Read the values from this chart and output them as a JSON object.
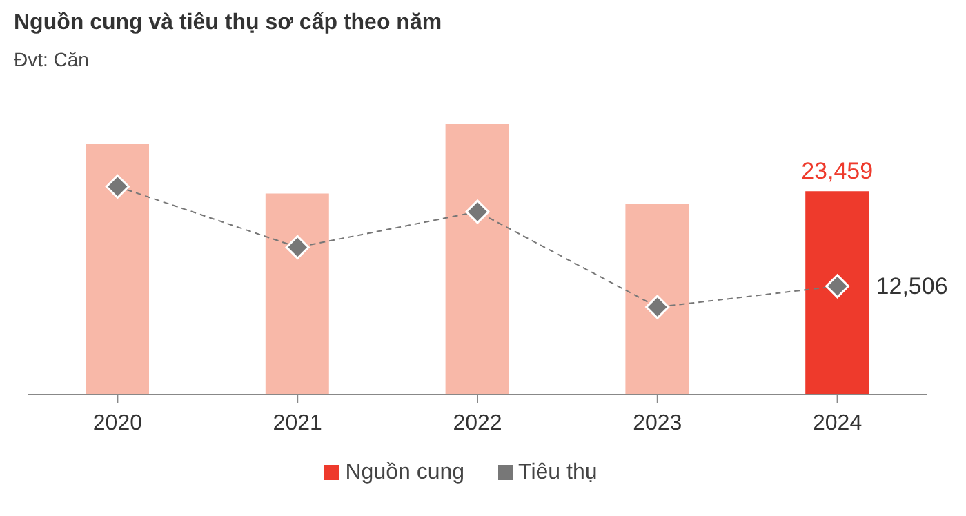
{
  "chart_data": {
    "type": "bar",
    "title": "Nguồn cung và tiêu thụ sơ cấp theo năm",
    "subtitle": "Đvt: Căn",
    "categories": [
      "2020",
      "2021",
      "2022",
      "2023",
      "2024"
    ],
    "series": [
      {
        "name": "Nguồn cung",
        "color": "#ee3a2c",
        "colors": [
          "#f8b8a8",
          "#f8b8a8",
          "#f8b8a8",
          "#f8b8a8",
          "#ee3a2c"
        ],
        "values": [
          28900,
          23200,
          31200,
          22000,
          23459
        ],
        "value_labels": [
          null,
          null,
          null,
          null,
          "23,459"
        ]
      },
      {
        "name": "Tiêu thụ",
        "type": "line",
        "color": "#777777",
        "marker": "diamond",
        "line_style": "dashed",
        "values": [
          24000,
          17000,
          21100,
          10100,
          12506
        ],
        "value_labels": [
          null,
          null,
          null,
          null,
          "12,506"
        ]
      }
    ],
    "legend": "bottom"
  }
}
